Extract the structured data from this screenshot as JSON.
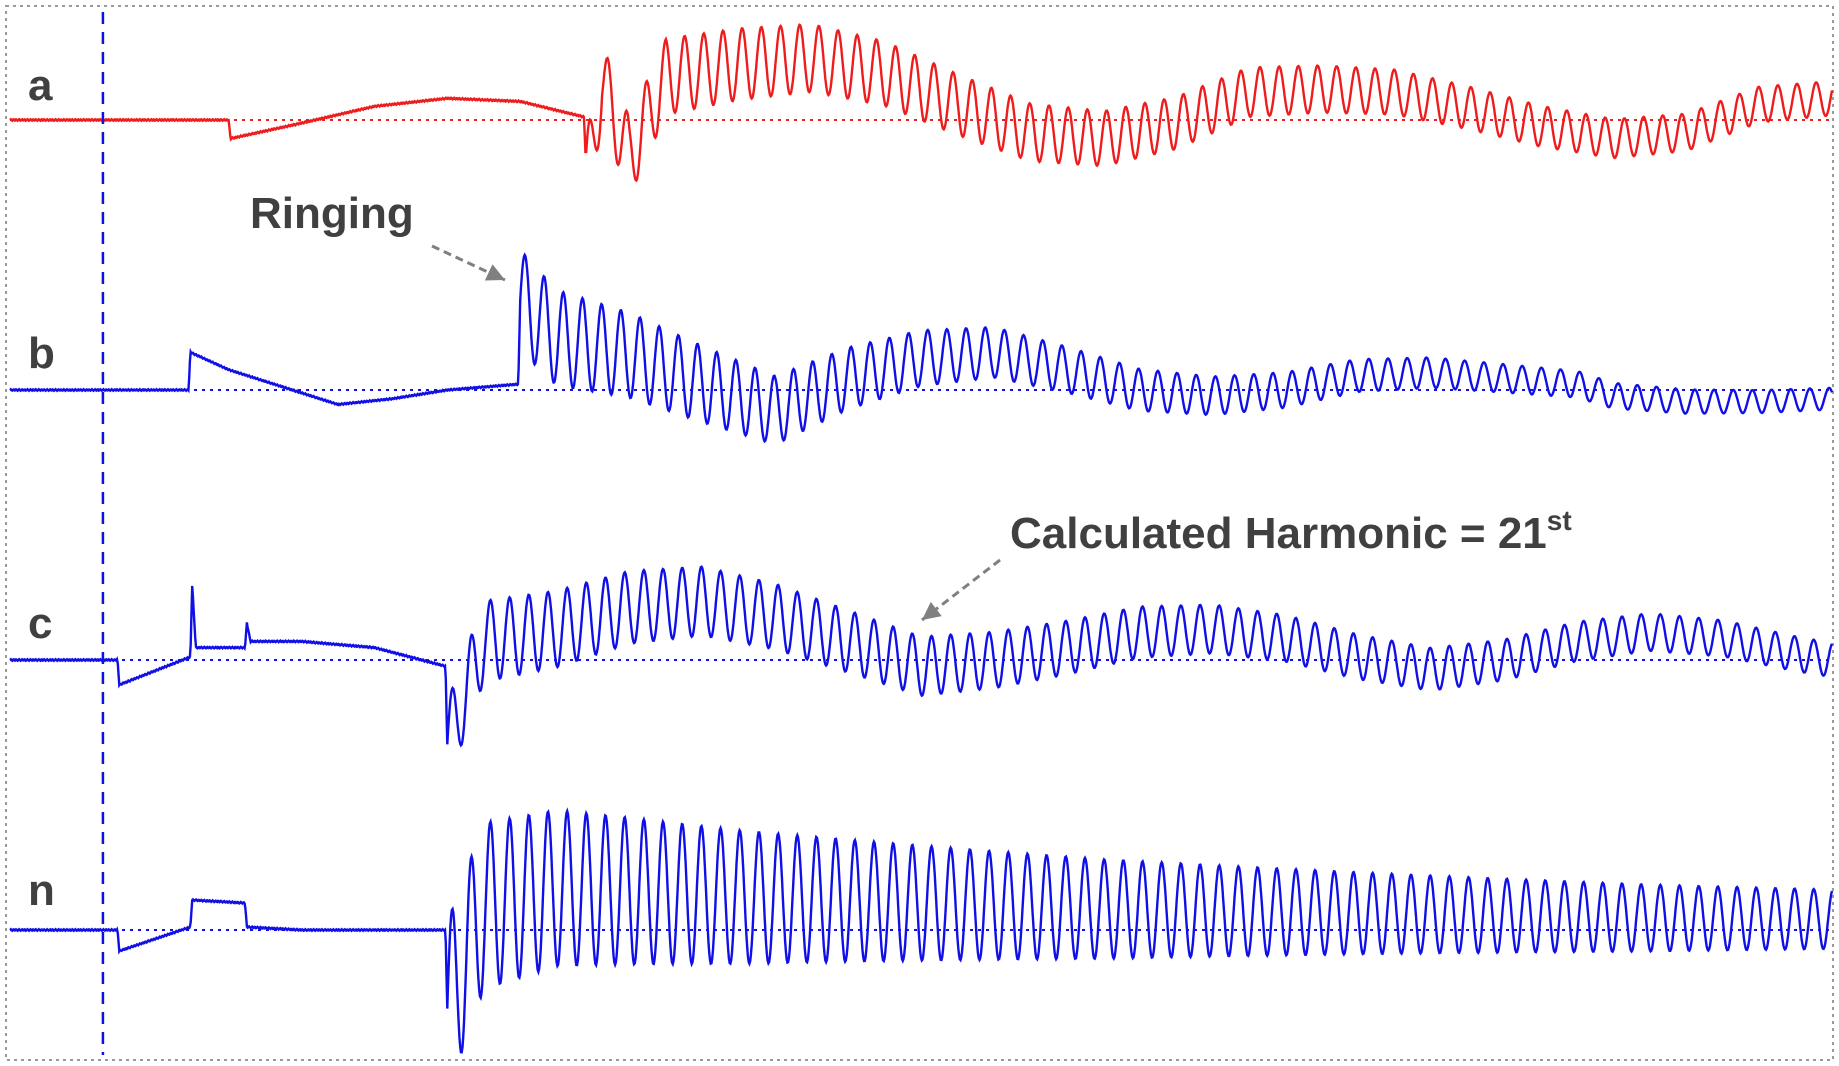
{
  "chart_data": {
    "type": "line",
    "title": "",
    "xlabel": "",
    "ylabel": "",
    "grid": false,
    "x_range": [
      0,
      100
    ],
    "y_range": [
      -1,
      1
    ],
    "event_marker_x": 5.1,
    "colors": {
      "phase_a": "#ee1c1c",
      "phase_b": "#1010e6",
      "phase_c": "#1010e6",
      "neutral": "#1010e6",
      "marker": "#1010e6",
      "annotation": "#404040"
    },
    "series": [
      {
        "name": "a",
        "color": "#ee1c1c",
        "points": [
          [
            0,
            0
          ],
          [
            5,
            0
          ],
          [
            12,
            0
          ],
          [
            12.1,
            -0.3
          ],
          [
            16,
            -0.05
          ],
          [
            20,
            0.22
          ],
          [
            24,
            0.35
          ],
          [
            28,
            0.3
          ],
          [
            31.5,
            0.05
          ],
          [
            31.6,
            -1.0
          ],
          [
            32.5,
            0.6
          ],
          [
            34,
            -0.6
          ],
          [
            36,
            0.7
          ],
          [
            40,
            0.9
          ],
          [
            44,
            1.0
          ],
          [
            48,
            0.75
          ],
          [
            52,
            0.25
          ],
          [
            56,
            -0.2
          ],
          [
            60,
            -0.3
          ],
          [
            64,
            -0.05
          ],
          [
            68,
            0.45
          ],
          [
            72,
            0.5
          ],
          [
            76,
            0.45
          ],
          [
            80,
            0.2
          ],
          [
            84,
            -0.1
          ],
          [
            88,
            -0.3
          ],
          [
            92,
            -0.2
          ],
          [
            96,
            0.25
          ],
          [
            100,
            0.35
          ]
        ],
        "ringing_cycles": 95
      },
      {
        "name": "b",
        "color": "#1010e6",
        "points": [
          [
            0,
            0
          ],
          [
            5,
            0
          ],
          [
            9.8,
            0
          ],
          [
            9.9,
            0.65
          ],
          [
            12,
            0.35
          ],
          [
            15,
            0.05
          ],
          [
            18,
            -0.25
          ],
          [
            21,
            -0.15
          ],
          [
            24,
            0.0
          ],
          [
            27.9,
            0.1
          ],
          [
            28,
            1.55
          ],
          [
            30,
            0.9
          ],
          [
            34,
            0.6
          ],
          [
            38,
            0.1
          ],
          [
            42,
            -0.35
          ],
          [
            46,
            0.2
          ],
          [
            50,
            0.55
          ],
          [
            54,
            0.65
          ],
          [
            58,
            0.35
          ],
          [
            62,
            0.0
          ],
          [
            66,
            -0.1
          ],
          [
            70,
            0.0
          ],
          [
            74,
            0.25
          ],
          [
            78,
            0.3
          ],
          [
            82,
            0.2
          ],
          [
            86,
            0.1
          ],
          [
            88,
            -0.1
          ],
          [
            92,
            -0.2
          ],
          [
            96,
            -0.2
          ],
          [
            100,
            -0.15
          ]
        ],
        "ringing_cycles": 95
      },
      {
        "name": "c",
        "color": "#1010e6",
        "points": [
          [
            0,
            0
          ],
          [
            5.9,
            0
          ],
          [
            6,
            -0.4
          ],
          [
            9.9,
            0.05
          ],
          [
            10,
            1.2
          ],
          [
            10.2,
            0.2
          ],
          [
            12.9,
            0.2
          ],
          [
            13,
            0.6
          ],
          [
            13.2,
            0.3
          ],
          [
            16,
            0.3
          ],
          [
            20,
            0.2
          ],
          [
            23.9,
            -0.1
          ],
          [
            24,
            -1.35
          ],
          [
            26,
            0.3
          ],
          [
            30,
            0.5
          ],
          [
            34,
            0.85
          ],
          [
            38,
            0.95
          ],
          [
            42,
            0.7
          ],
          [
            46,
            0.3
          ],
          [
            50,
            -0.1
          ],
          [
            54,
            0.0
          ],
          [
            58,
            0.2
          ],
          [
            62,
            0.45
          ],
          [
            66,
            0.5
          ],
          [
            70,
            0.35
          ],
          [
            74,
            0.05
          ],
          [
            78,
            -0.15
          ],
          [
            82,
            0.0
          ],
          [
            86,
            0.3
          ],
          [
            90,
            0.45
          ],
          [
            94,
            0.35
          ],
          [
            98,
            0.1
          ],
          [
            100,
            0.0
          ]
        ],
        "ringing_cycles": 95
      },
      {
        "name": "n",
        "color": "#1010e6",
        "points": [
          [
            0,
            0
          ],
          [
            5.9,
            0
          ],
          [
            6,
            -0.35
          ],
          [
            9.9,
            0.05
          ],
          [
            10,
            0.5
          ],
          [
            12.9,
            0.45
          ],
          [
            13,
            0.05
          ],
          [
            16,
            0
          ],
          [
            23.9,
            0
          ],
          [
            24,
            -1.3
          ],
          [
            26,
            0.4
          ],
          [
            30,
            0.7
          ],
          [
            34,
            0.65
          ],
          [
            40,
            0.55
          ],
          [
            50,
            0.45
          ],
          [
            60,
            0.35
          ],
          [
            70,
            0.3
          ],
          [
            80,
            0.25
          ],
          [
            90,
            0.2
          ],
          [
            100,
            0.18
          ]
        ],
        "ringing_cycles": 95
      }
    ],
    "annotations": [
      {
        "text": "Ringing",
        "target_series": "b",
        "target_x": 27.5
      },
      {
        "text": "Calculated Harmonic = 21",
        "suffix": "st",
        "target_series": "c",
        "target_x": 50
      }
    ]
  }
}
